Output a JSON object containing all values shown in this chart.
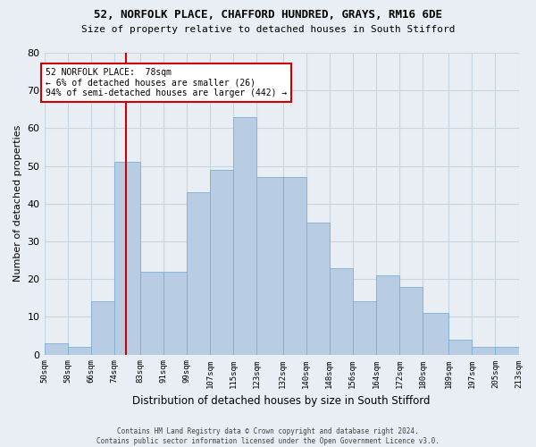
{
  "title1": "52, NORFOLK PLACE, CHAFFORD HUNDRED, GRAYS, RM16 6DE",
  "title2": "Size of property relative to detached houses in South Stifford",
  "xlabel": "Distribution of detached houses by size in South Stifford",
  "ylabel": "Number of detached properties",
  "bar_color": "#b8cce4",
  "bar_edge_color": "#7bafd4",
  "bin_edges": [
    50,
    58,
    66,
    74,
    83,
    91,
    99,
    107,
    115,
    123,
    132,
    140,
    148,
    156,
    164,
    172,
    180,
    189,
    197,
    205,
    213
  ],
  "bin_labels": [
    "50sqm",
    "58sqm",
    "66sqm",
    "74sqm",
    "83sqm",
    "91sqm",
    "99sqm",
    "107sqm",
    "115sqm",
    "123sqm",
    "132sqm",
    "140sqm",
    "148sqm",
    "156sqm",
    "164sqm",
    "172sqm",
    "180sqm",
    "189sqm",
    "197sqm",
    "205sqm",
    "213sqm"
  ],
  "values": [
    3,
    2,
    14,
    51,
    22,
    22,
    43,
    49,
    63,
    47,
    47,
    35,
    23,
    14,
    21,
    18,
    11,
    4,
    2,
    2
  ],
  "ylim": [
    0,
    80
  ],
  "vline_x": 78,
  "vline_color": "#cc0000",
  "annotation_text": "52 NORFOLK PLACE:  78sqm\n← 6% of detached houses are smaller (26)\n94% of semi-detached houses are larger (442) →",
  "annotation_box_color": "#ffffff",
  "annotation_box_edge_color": "#cc0000",
  "grid_color": "#c8d4e0",
  "background_color": "#e8eef4",
  "plot_bg_color": "#e8eef4",
  "footnote": "Contains HM Land Registry data © Crown copyright and database right 2024.\nContains public sector information licensed under the Open Government Licence v3.0."
}
